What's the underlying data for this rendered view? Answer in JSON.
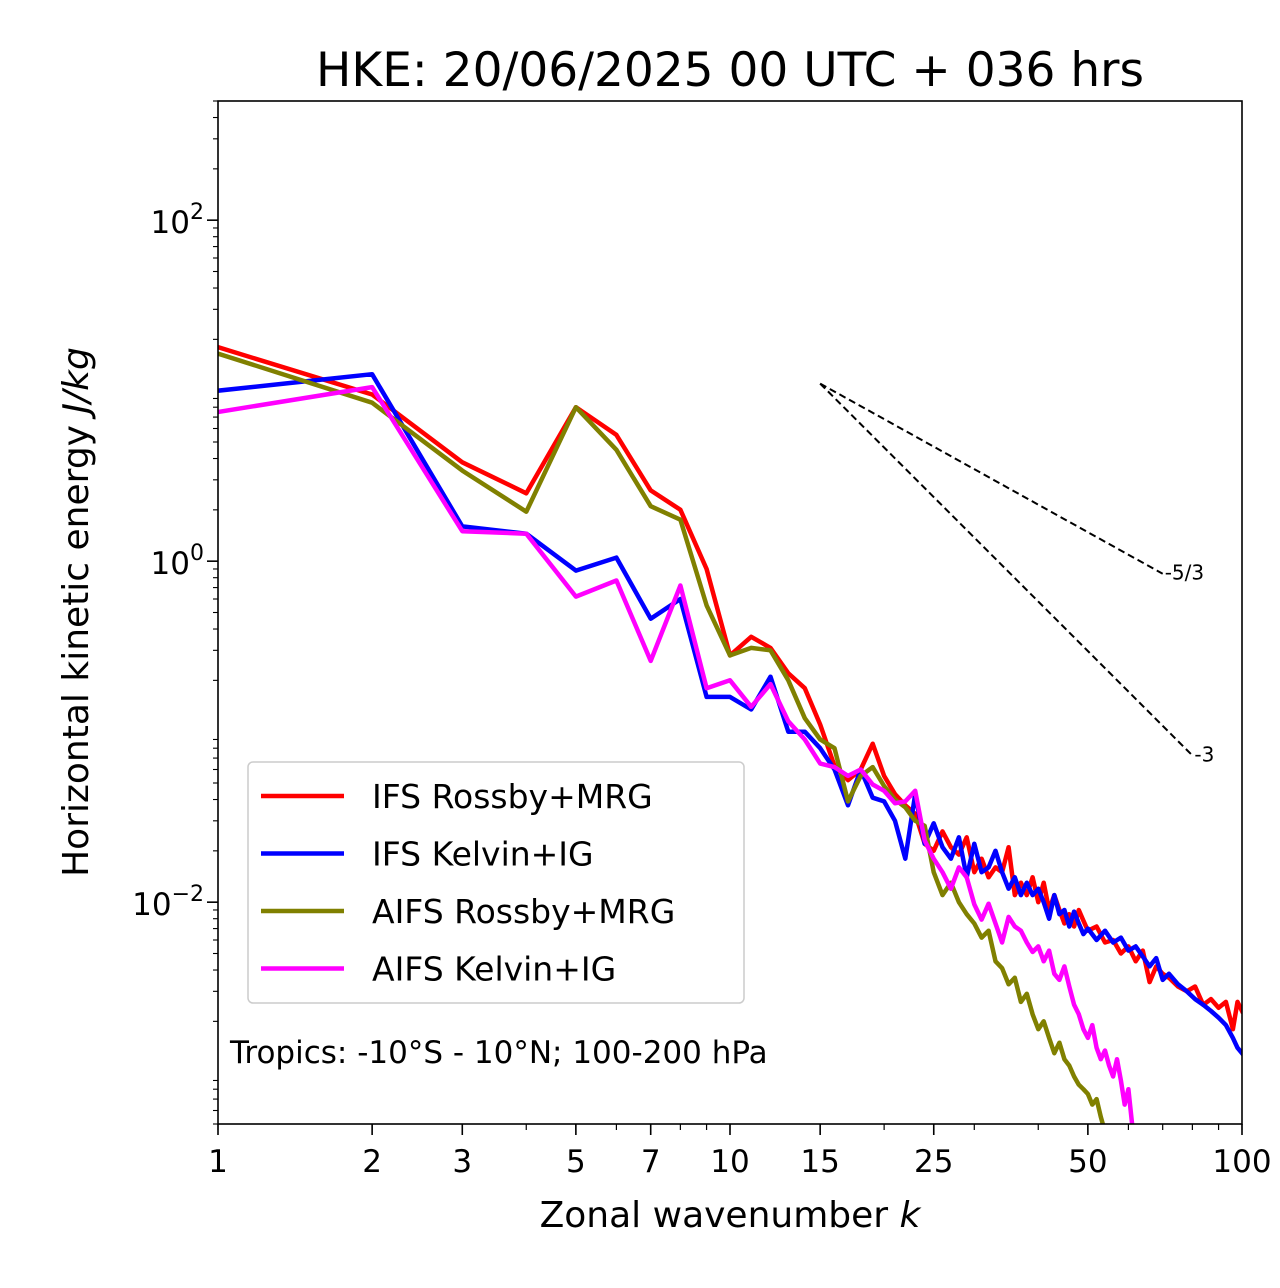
{
  "chart_data": {
    "type": "line",
    "title": "HKE: 20/06/2025 00 UTC + 036 hrs",
    "xlabel": "Zonal wavenumber",
    "xlabel_var": "k",
    "ylabel": "Horizontal kinetic energy",
    "ylabel_unit": "J/kg",
    "x_scale": "log",
    "y_scale": "log",
    "xlim": [
      1,
      100
    ],
    "ylim": [
      0.0005,
      500
    ],
    "x_ticks": [
      1,
      2,
      3,
      5,
      7,
      10,
      15,
      25,
      50,
      100
    ],
    "y_ticks": [
      {
        "value": 100,
        "base": "10",
        "exp": "2"
      },
      {
        "value": 1,
        "base": "10",
        "exp": "0"
      },
      {
        "value": 0.01,
        "base": "10",
        "exp": "−2"
      }
    ],
    "grid": false,
    "legend_position": "bottom-left",
    "annotation": "Tropics: -10°S - 10°N; 100-200 hPa",
    "reference_lines": [
      {
        "label": "-5/3",
        "slope": -1.6667,
        "x0": 15,
        "y0": 11,
        "x1": 70
      },
      {
        "label": "-3",
        "slope": -3,
        "x0": 15,
        "y0": 11,
        "x1": 80
      }
    ],
    "series": [
      {
        "name": "IFS Rossby+MRG",
        "color": "#ff0000",
        "points": [
          [
            1,
            18
          ],
          [
            2,
            9.5
          ],
          [
            3,
            3.8
          ],
          [
            4,
            2.5
          ],
          [
            5,
            8
          ],
          [
            6,
            5.5
          ],
          [
            7,
            2.6
          ],
          [
            8,
            2
          ],
          [
            9,
            0.9
          ],
          [
            10,
            0.28
          ],
          [
            11,
            0.36
          ],
          [
            12,
            0.31
          ],
          [
            13,
            0.22
          ],
          [
            14,
            0.18
          ],
          [
            15,
            0.11
          ],
          [
            16,
            0.063
          ],
          [
            17,
            0.052
          ],
          [
            18,
            0.06
          ],
          [
            19,
            0.085
          ],
          [
            20,
            0.055
          ],
          [
            21,
            0.043
          ],
          [
            22,
            0.037
          ],
          [
            23,
            0.033
          ],
          [
            24,
            0.022
          ],
          [
            25,
            0.02
          ],
          [
            26,
            0.026
          ],
          [
            27,
            0.021
          ],
          [
            28,
            0.019
          ],
          [
            29,
            0.024
          ],
          [
            30,
            0.015
          ],
          [
            31,
            0.018
          ],
          [
            32,
            0.014
          ],
          [
            33,
            0.016
          ],
          [
            34,
            0.015
          ],
          [
            35,
            0.021
          ],
          [
            36,
            0.011
          ],
          [
            37,
            0.013
          ],
          [
            38,
            0.011
          ],
          [
            39,
            0.014
          ],
          [
            40,
            0.01
          ],
          [
            41,
            0.013
          ],
          [
            42,
            0.009
          ],
          [
            43,
            0.011
          ],
          [
            44,
            0.009
          ],
          [
            45,
            0.0075
          ],
          [
            46,
            0.0085
          ],
          [
            47,
            0.0072
          ],
          [
            48,
            0.009
          ],
          [
            49,
            0.0078
          ],
          [
            50,
            0.0068
          ],
          [
            52,
            0.0072
          ],
          [
            54,
            0.0058
          ],
          [
            56,
            0.006
          ],
          [
            58,
            0.005
          ],
          [
            60,
            0.0055
          ],
          [
            62,
            0.0045
          ],
          [
            64,
            0.0052
          ],
          [
            66,
            0.0034
          ],
          [
            68,
            0.0042
          ],
          [
            70,
            0.0038
          ],
          [
            72,
            0.0036
          ],
          [
            75,
            0.0032
          ],
          [
            78,
            0.003
          ],
          [
            81,
            0.0032
          ],
          [
            84,
            0.0025
          ],
          [
            87,
            0.0027
          ],
          [
            90,
            0.0024
          ],
          [
            93,
            0.0026
          ],
          [
            96,
            0.0018
          ],
          [
            98,
            0.0026
          ],
          [
            100,
            0.0023
          ]
        ]
      },
      {
        "name": "IFS Kelvin+IG",
        "color": "#0000ff",
        "points": [
          [
            1,
            10
          ],
          [
            2,
            12.5
          ],
          [
            3,
            1.6
          ],
          [
            4,
            1.45
          ],
          [
            5,
            0.88
          ],
          [
            6,
            1.05
          ],
          [
            7,
            0.46
          ],
          [
            8,
            0.6
          ],
          [
            9,
            0.16
          ],
          [
            10,
            0.16
          ],
          [
            11,
            0.135
          ],
          [
            12,
            0.21
          ],
          [
            13,
            0.1
          ],
          [
            14,
            0.1
          ],
          [
            15,
            0.08
          ],
          [
            16,
            0.06
          ],
          [
            17,
            0.037
          ],
          [
            18,
            0.06
          ],
          [
            19,
            0.041
          ],
          [
            20,
            0.039
          ],
          [
            21,
            0.03
          ],
          [
            22,
            0.018
          ],
          [
            23,
            0.043
          ],
          [
            24,
            0.022
          ],
          [
            25,
            0.029
          ],
          [
            26,
            0.021
          ],
          [
            27,
            0.018
          ],
          [
            28,
            0.024
          ],
          [
            29,
            0.014
          ],
          [
            30,
            0.022
          ],
          [
            31,
            0.015
          ],
          [
            32,
            0.016
          ],
          [
            33,
            0.02
          ],
          [
            34,
            0.015
          ],
          [
            35,
            0.012
          ],
          [
            36,
            0.014
          ],
          [
            37,
            0.011
          ],
          [
            38,
            0.013
          ],
          [
            39,
            0.011
          ],
          [
            40,
            0.012
          ],
          [
            41,
            0.01
          ],
          [
            42,
            0.008
          ],
          [
            43,
            0.011
          ],
          [
            44,
            0.0085
          ],
          [
            45,
            0.009
          ],
          [
            46,
            0.0072
          ],
          [
            47,
            0.0088
          ],
          [
            48,
            0.0075
          ],
          [
            49,
            0.0065
          ],
          [
            50,
            0.007
          ],
          [
            52,
            0.006
          ],
          [
            54,
            0.0068
          ],
          [
            56,
            0.0058
          ],
          [
            58,
            0.0062
          ],
          [
            60,
            0.0052
          ],
          [
            62,
            0.0055
          ],
          [
            64,
            0.0048
          ],
          [
            66,
            0.0042
          ],
          [
            68,
            0.0047
          ],
          [
            70,
            0.0035
          ],
          [
            72,
            0.0038
          ],
          [
            75,
            0.0033
          ],
          [
            78,
            0.003
          ],
          [
            81,
            0.0027
          ],
          [
            84,
            0.0025
          ],
          [
            87,
            0.0023
          ],
          [
            90,
            0.0021
          ],
          [
            93,
            0.0019
          ],
          [
            96,
            0.0016
          ],
          [
            98,
            0.0014
          ],
          [
            100,
            0.0013
          ]
        ]
      },
      {
        "name": "AIFS Rossby+MRG",
        "color": "#808000",
        "points": [
          [
            1,
            16.5
          ],
          [
            2,
            8.5
          ],
          [
            3,
            3.4
          ],
          [
            4,
            1.95
          ],
          [
            5,
            8
          ],
          [
            6,
            4.5
          ],
          [
            7,
            2.1
          ],
          [
            8,
            1.75
          ],
          [
            9,
            0.55
          ],
          [
            10,
            0.28
          ],
          [
            11,
            0.31
          ],
          [
            12,
            0.3
          ],
          [
            13,
            0.2
          ],
          [
            14,
            0.12
          ],
          [
            15,
            0.09
          ],
          [
            16,
            0.08
          ],
          [
            17,
            0.039
          ],
          [
            18,
            0.055
          ],
          [
            19,
            0.062
          ],
          [
            20,
            0.048
          ],
          [
            21,
            0.04
          ],
          [
            22,
            0.036
          ],
          [
            23,
            0.03
          ],
          [
            24,
            0.028
          ],
          [
            25,
            0.015
          ],
          [
            26,
            0.011
          ],
          [
            27,
            0.013
          ],
          [
            28,
            0.01
          ],
          [
            29,
            0.0085
          ],
          [
            30,
            0.0075
          ],
          [
            31,
            0.0062
          ],
          [
            32,
            0.0068
          ],
          [
            33,
            0.0045
          ],
          [
            34,
            0.0041
          ],
          [
            35,
            0.0033
          ],
          [
            36,
            0.0036
          ],
          [
            37,
            0.0026
          ],
          [
            38,
            0.0029
          ],
          [
            39,
            0.0022
          ],
          [
            40,
            0.0018
          ],
          [
            41,
            0.002
          ],
          [
            42,
            0.0016
          ],
          [
            43,
            0.0013
          ],
          [
            44,
            0.0015
          ],
          [
            45,
            0.0012
          ],
          [
            46,
            0.0011
          ],
          [
            47,
            0.00095
          ],
          [
            48,
            0.00085
          ],
          [
            49,
            0.0008
          ],
          [
            50,
            0.00075
          ],
          [
            51,
            0.00065
          ],
          [
            52,
            0.0007
          ],
          [
            53,
            0.00055
          ],
          [
            54,
            0.00045
          ]
        ]
      },
      {
        "name": "AIFS Kelvin+IG",
        "color": "#ff00ff",
        "points": [
          [
            1,
            7.5
          ],
          [
            2,
            10.5
          ],
          [
            3,
            1.5
          ],
          [
            4,
            1.45
          ],
          [
            5,
            0.62
          ],
          [
            6,
            0.77
          ],
          [
            7,
            0.26
          ],
          [
            8,
            0.72
          ],
          [
            9,
            0.18
          ],
          [
            10,
            0.2
          ],
          [
            11,
            0.14
          ],
          [
            12,
            0.19
          ],
          [
            13,
            0.115
          ],
          [
            14,
            0.09
          ],
          [
            15,
            0.065
          ],
          [
            16,
            0.062
          ],
          [
            17,
            0.055
          ],
          [
            18,
            0.06
          ],
          [
            19,
            0.049
          ],
          [
            20,
            0.045
          ],
          [
            21,
            0.038
          ],
          [
            22,
            0.039
          ],
          [
            23,
            0.045
          ],
          [
            24,
            0.023
          ],
          [
            25,
            0.018
          ],
          [
            26,
            0.015
          ],
          [
            27,
            0.012
          ],
          [
            28,
            0.016
          ],
          [
            29,
            0.014
          ],
          [
            30,
            0.0097
          ],
          [
            31,
            0.0079
          ],
          [
            32,
            0.0098
          ],
          [
            33,
            0.0075
          ],
          [
            34,
            0.0058
          ],
          [
            35,
            0.0082
          ],
          [
            36,
            0.0072
          ],
          [
            37,
            0.0068
          ],
          [
            38,
            0.0058
          ],
          [
            39,
            0.0051
          ],
          [
            40,
            0.0055
          ],
          [
            41,
            0.0045
          ],
          [
            42,
            0.0052
          ],
          [
            43,
            0.0038
          ],
          [
            44,
            0.0035
          ],
          [
            45,
            0.0042
          ],
          [
            46,
            0.0032
          ],
          [
            47,
            0.0025
          ],
          [
            48,
            0.0022
          ],
          [
            49,
            0.0018
          ],
          [
            50,
            0.0016
          ],
          [
            51,
            0.0019
          ],
          [
            52,
            0.0014
          ],
          [
            53,
            0.0012
          ],
          [
            54,
            0.00135
          ],
          [
            55,
            0.0011
          ],
          [
            56,
            0.00095
          ],
          [
            57,
            0.0012
          ],
          [
            58,
            0.0009
          ],
          [
            59,
            0.00065
          ],
          [
            60,
            0.0008
          ],
          [
            61,
            0.0005
          ],
          [
            62,
            0.00042
          ]
        ]
      }
    ]
  }
}
